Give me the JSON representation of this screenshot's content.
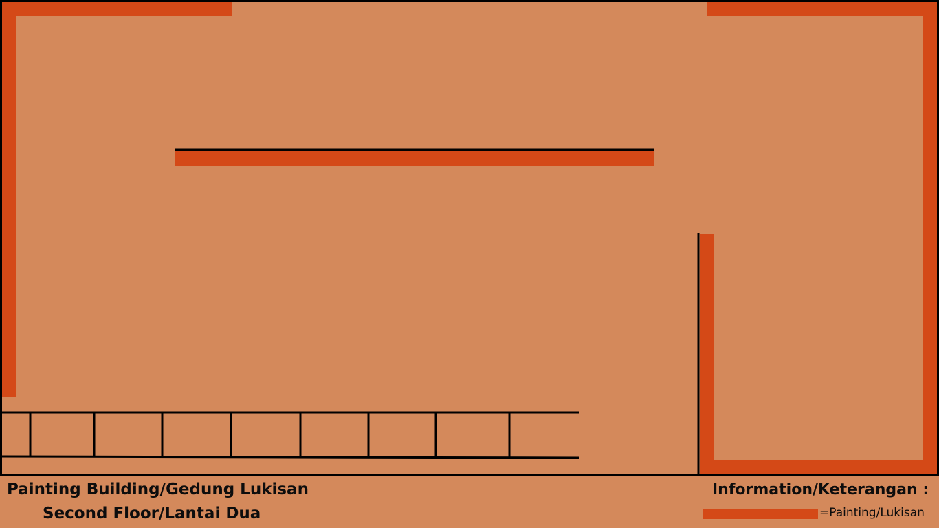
{
  "colors": {
    "background": "#D4895B",
    "painting": "#D44917",
    "wall": "#000000"
  },
  "title": {
    "line1": "Painting Building/Gedung Lukisan",
    "line2": "Second Floor/Lantai Dua"
  },
  "legend": {
    "heading": "Information/Keterangan :",
    "items": [
      {
        "symbol": "painting-bar",
        "label": "=Painting/Lukisan"
      }
    ]
  }
}
